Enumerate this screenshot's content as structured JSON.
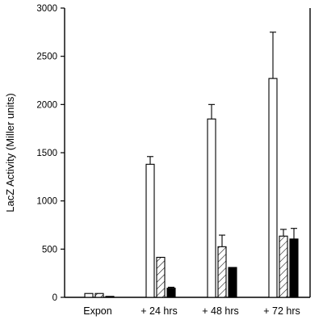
{
  "chart_data": {
    "type": "bar",
    "title": "",
    "ylabel": "LacZ Activity (Miller units)",
    "xlabel": "",
    "ylim": [
      0,
      3000
    ],
    "yticks": [
      0,
      500,
      1000,
      1500,
      2000,
      2500,
      3000
    ],
    "categories": [
      "Expon",
      "+ 24 hrs",
      "+ 48 hrs",
      "+ 72 hrs"
    ],
    "legend": "none",
    "grid": false,
    "series": [
      {
        "fill": "open",
        "color": "#ffffff",
        "values": [
          40,
          1380,
          1850,
          2270
        ],
        "errors": [
          0,
          80,
          150,
          480
        ]
      },
      {
        "fill": "hatched",
        "color": "#ffffff",
        "values": [
          40,
          415,
          525,
          635
        ],
        "errors": [
          0,
          0,
          120,
          70
        ]
      },
      {
        "fill": "solid",
        "color": "#000000",
        "values": [
          10,
          95,
          310,
          605
        ],
        "errors": [
          0,
          10,
          0,
          110
        ]
      }
    ]
  }
}
